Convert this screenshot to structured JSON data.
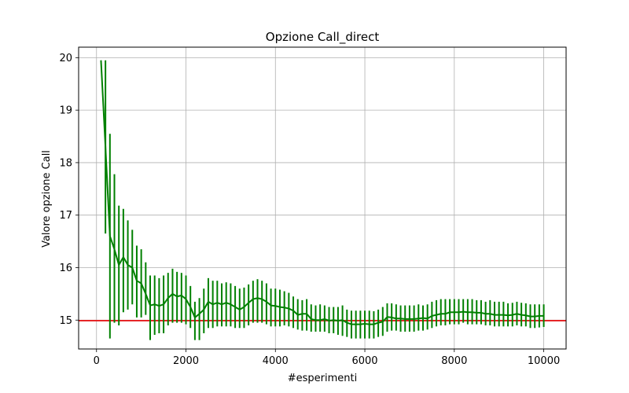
{
  "chart_data": {
    "type": "line",
    "title": "Opzione Call_direct",
    "xlabel": "#esperimenti",
    "ylabel": "Valore opzione Call",
    "xlim": [
      -400,
      10500
    ],
    "ylim": [
      14.45,
      20.2
    ],
    "xticks": [
      0,
      2000,
      4000,
      6000,
      8000,
      10000
    ],
    "yticks": [
      15,
      16,
      17,
      18,
      19,
      20
    ],
    "xtick_labels": [
      "0",
      "2000",
      "4000",
      "6000",
      "8000",
      "10000"
    ],
    "ytick_labels": [
      "15",
      "16",
      "17",
      "18",
      "19",
      "20"
    ],
    "grid": true,
    "reference_line": {
      "y": 14.99,
      "color": "#e41a1c"
    },
    "series": [
      {
        "color": "#008000",
        "x": [
          100,
          200,
          300,
          400,
          500,
          600,
          700,
          800,
          900,
          1000,
          1100,
          1200,
          1300,
          1400,
          1500,
          1600,
          1700,
          1800,
          1900,
          2000,
          2100,
          2200,
          2300,
          2400,
          2500,
          2600,
          2700,
          2800,
          2900,
          3000,
          3100,
          3200,
          3300,
          3400,
          3500,
          3600,
          3700,
          3800,
          3900,
          4000,
          4100,
          4200,
          4300,
          4400,
          4500,
          4600,
          4700,
          4800,
          4900,
          5000,
          5100,
          5200,
          5300,
          5400,
          5500,
          5600,
          5700,
          5800,
          5900,
          6000,
          6100,
          6200,
          6300,
          6400,
          6500,
          6600,
          6700,
          6800,
          6900,
          7000,
          7100,
          7200,
          7300,
          7400,
          7500,
          7600,
          7700,
          7800,
          7900,
          8000,
          8100,
          8200,
          8300,
          8400,
          8500,
          8600,
          8700,
          8800,
          8900,
          9000,
          9100,
          9200,
          9300,
          9400,
          9500,
          9600,
          9700,
          9800,
          9900,
          10000
        ],
        "y": [
          19.95,
          18.3,
          16.6,
          16.35,
          16.05,
          16.2,
          16.05,
          16.0,
          15.75,
          15.7,
          15.5,
          15.28,
          15.3,
          15.27,
          15.3,
          15.42,
          15.5,
          15.45,
          15.47,
          15.4,
          15.25,
          15.05,
          15.12,
          15.2,
          15.35,
          15.3,
          15.33,
          15.3,
          15.33,
          15.3,
          15.25,
          15.2,
          15.25,
          15.33,
          15.4,
          15.42,
          15.4,
          15.35,
          15.28,
          15.27,
          15.25,
          15.24,
          15.22,
          15.18,
          15.1,
          15.12,
          15.12,
          15.02,
          15.0,
          15.0,
          15.02,
          14.99,
          15.0,
          14.99,
          15.0,
          14.95,
          14.92,
          14.92,
          14.92,
          14.93,
          14.92,
          14.92,
          14.95,
          14.97,
          15.06,
          15.05,
          15.03,
          15.03,
          15.02,
          15.02,
          15.02,
          15.03,
          15.04,
          15.03,
          15.08,
          15.1,
          15.12,
          15.12,
          15.15,
          15.15,
          15.15,
          15.16,
          15.15,
          15.15,
          15.14,
          15.14,
          15.12,
          15.12,
          15.1,
          15.1,
          15.1,
          15.09,
          15.1,
          15.12,
          15.1,
          15.09,
          15.07,
          15.07,
          15.08,
          15.08
        ],
        "err_low": [
          19.95,
          16.65,
          14.65,
          14.95,
          14.9,
          15.15,
          15.2,
          15.3,
          15.05,
          15.05,
          15.1,
          14.62,
          14.72,
          14.75,
          14.75,
          14.9,
          14.95,
          14.95,
          14.95,
          14.92,
          14.85,
          14.62,
          14.62,
          14.75,
          14.85,
          14.85,
          14.88,
          14.88,
          14.88,
          14.88,
          14.85,
          14.85,
          14.85,
          14.9,
          14.95,
          14.95,
          14.95,
          14.92,
          14.88,
          14.88,
          14.88,
          14.9,
          14.88,
          14.85,
          14.82,
          14.8,
          14.8,
          14.78,
          14.78,
          14.78,
          14.78,
          14.75,
          14.75,
          14.72,
          14.7,
          14.68,
          14.65,
          14.65,
          14.65,
          14.65,
          14.65,
          14.65,
          14.68,
          14.7,
          14.78,
          14.8,
          14.8,
          14.78,
          14.78,
          14.78,
          14.78,
          14.8,
          14.8,
          14.82,
          14.85,
          14.88,
          14.9,
          14.9,
          14.92,
          14.92,
          14.92,
          14.95,
          14.92,
          14.92,
          14.92,
          14.92,
          14.9,
          14.9,
          14.88,
          14.88,
          14.88,
          14.88,
          14.88,
          14.9,
          14.88,
          14.88,
          14.85,
          14.85,
          14.86,
          14.87
        ],
        "err_high": [
          19.95,
          19.95,
          18.55,
          17.78,
          17.18,
          17.12,
          16.9,
          16.72,
          16.42,
          16.35,
          16.1,
          15.85,
          15.85,
          15.8,
          15.85,
          15.9,
          15.98,
          15.92,
          15.9,
          15.85,
          15.65,
          15.35,
          15.42,
          15.6,
          15.8,
          15.75,
          15.75,
          15.7,
          15.72,
          15.7,
          15.65,
          15.6,
          15.62,
          15.68,
          15.75,
          15.78,
          15.75,
          15.7,
          15.6,
          15.6,
          15.58,
          15.55,
          15.52,
          15.45,
          15.4,
          15.38,
          15.4,
          15.3,
          15.28,
          15.3,
          15.28,
          15.25,
          15.25,
          15.25,
          15.28,
          15.2,
          15.18,
          15.18,
          15.18,
          15.18,
          15.18,
          15.17,
          15.2,
          15.25,
          15.32,
          15.32,
          15.3,
          15.28,
          15.28,
          15.28,
          15.28,
          15.3,
          15.28,
          15.3,
          15.35,
          15.38,
          15.4,
          15.4,
          15.4,
          15.4,
          15.4,
          15.4,
          15.4,
          15.4,
          15.38,
          15.38,
          15.35,
          15.38,
          15.35,
          15.35,
          15.35,
          15.32,
          15.33,
          15.35,
          15.33,
          15.32,
          15.3,
          15.3,
          15.3,
          15.3
        ]
      }
    ]
  }
}
